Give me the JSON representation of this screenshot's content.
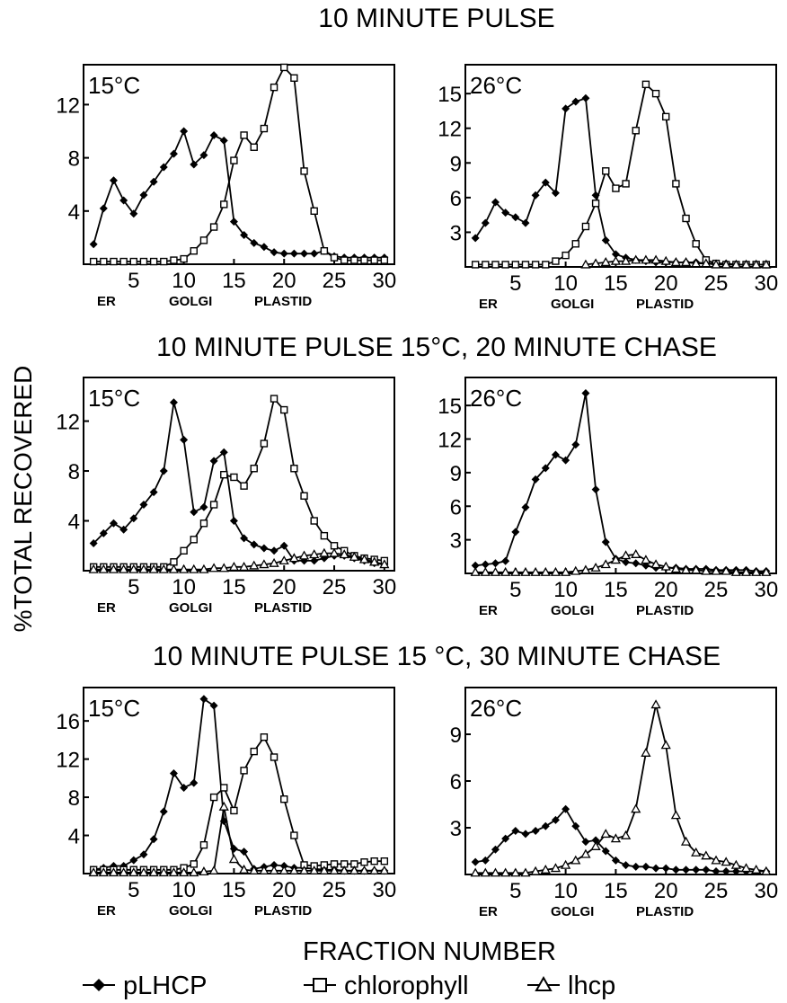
{
  "figure": {
    "ylabel": "%TOTAL RECOVERED",
    "xlabel": "FRACTION NUMBER",
    "region_labels": [
      "ER",
      "GOLGI",
      "PLASTID"
    ],
    "sections": [
      "10 MINUTE PULSE",
      "10 MINUTE PULSE 15°C, 20 MINUTE CHASE",
      "10 MINUTE PULSE 15 °C, 30 MINUTE CHASE"
    ],
    "legend": [
      {
        "name": "pLHCP",
        "marker": "filled-diamond"
      },
      {
        "name": "chlorophyll",
        "marker": "open-square"
      },
      {
        "name": "lhcp",
        "marker": "open-triangle"
      }
    ]
  },
  "chart_data": [
    {
      "type": "line",
      "title": "10 MINUTE PULSE",
      "panel_label": "15°C",
      "xticks": [
        5,
        10,
        15,
        20,
        25,
        30
      ],
      "yticks": [
        4,
        8,
        12
      ],
      "xlim": [
        0,
        31
      ],
      "ylim": [
        0,
        15
      ],
      "series": [
        {
          "name": "pLHCP",
          "x": [
            1,
            2,
            3,
            4,
            5,
            6,
            7,
            8,
            9,
            10,
            11,
            12,
            13,
            14,
            15,
            16,
            17,
            18,
            19,
            20,
            21,
            22,
            23,
            24,
            25,
            26,
            27,
            28,
            29,
            30
          ],
          "values": [
            1.5,
            4.2,
            6.3,
            4.8,
            3.8,
            5.2,
            6.2,
            7.3,
            8.3,
            10.0,
            7.5,
            8.2,
            9.7,
            9.3,
            3.2,
            2.2,
            1.6,
            1.3,
            0.9,
            0.8,
            0.8,
            0.8,
            0.8,
            1.0,
            0.6,
            0.5,
            0.5,
            0.5,
            0.5,
            0.5
          ]
        },
        {
          "name": "chlorophyll",
          "x": [
            1,
            2,
            3,
            4,
            5,
            6,
            7,
            8,
            9,
            10,
            11,
            12,
            13,
            14,
            15,
            16,
            17,
            18,
            19,
            20,
            21,
            22,
            23,
            24,
            25,
            26,
            27,
            28,
            29,
            30
          ],
          "values": [
            0.2,
            0.2,
            0.2,
            0.2,
            0.2,
            0.2,
            0.2,
            0.2,
            0.3,
            0.4,
            1.0,
            1.8,
            2.8,
            4.5,
            7.8,
            9.7,
            8.8,
            10.2,
            13.3,
            14.8,
            14.0,
            7.0,
            4.0,
            1.0,
            0.5,
            0.3,
            0.3,
            0.3,
            0.3,
            0.3
          ]
        }
      ]
    },
    {
      "type": "line",
      "title": "10 MINUTE PULSE",
      "panel_label": "26°C",
      "xticks": [
        5,
        10,
        15,
        20,
        25,
        30
      ],
      "yticks": [
        3,
        6,
        9,
        12,
        15
      ],
      "xlim": [
        0,
        31
      ],
      "ylim": [
        0,
        17.5
      ],
      "series": [
        {
          "name": "pLHCP",
          "x": [
            1,
            2,
            3,
            4,
            5,
            6,
            7,
            8,
            9,
            10,
            11,
            12,
            13,
            14,
            15,
            16,
            17,
            18,
            19,
            20,
            21,
            22,
            23,
            24,
            25,
            26,
            27,
            28,
            29,
            30
          ],
          "values": [
            2.5,
            3.8,
            5.6,
            4.7,
            4.3,
            3.8,
            6.2,
            7.3,
            6.4,
            13.7,
            14.3,
            14.6,
            6.2,
            2.3,
            1.1,
            0.8,
            0.6,
            0.5,
            0.4,
            0.4,
            0.4,
            0.4,
            0.4,
            0.3,
            0.3,
            0.3,
            0.2,
            0.2,
            0.2,
            0.2
          ]
        },
        {
          "name": "chlorophyll",
          "x": [
            1,
            2,
            3,
            4,
            5,
            6,
            7,
            8,
            9,
            10,
            11,
            12,
            13,
            14,
            15,
            16,
            17,
            18,
            19,
            20,
            21,
            22,
            23,
            24,
            25,
            26,
            27,
            28,
            29,
            30
          ],
          "values": [
            0.2,
            0.2,
            0.2,
            0.2,
            0.2,
            0.2,
            0.2,
            0.2,
            0.5,
            1.0,
            2.0,
            3.5,
            5.5,
            8.3,
            6.8,
            7.2,
            11.8,
            15.8,
            15.0,
            13.0,
            7.2,
            4.2,
            2.0,
            0.6,
            0.3,
            0.2,
            0.2,
            0.2,
            0.2,
            0.2
          ]
        },
        {
          "name": "lhcp",
          "x": [
            12,
            13,
            14,
            15,
            16,
            17,
            18,
            19,
            20,
            21,
            22,
            23,
            24,
            25,
            26,
            27,
            28,
            29,
            30
          ],
          "values": [
            0.2,
            0.3,
            0.4,
            0.5,
            0.5,
            0.6,
            0.6,
            0.6,
            0.5,
            0.4,
            0.4,
            0.3,
            0.3,
            0.2,
            0.2,
            0.2,
            0.2,
            0.2,
            0.2
          ]
        }
      ]
    },
    {
      "type": "line",
      "title": "10 MINUTE PULSE 15°C, 20 MINUTE CHASE",
      "panel_label": "15°C",
      "xticks": [
        5,
        10,
        15,
        20,
        25,
        30
      ],
      "yticks": [
        4,
        8,
        12
      ],
      "xlim": [
        0,
        31
      ],
      "ylim": [
        0,
        15.5
      ],
      "series": [
        {
          "name": "pLHCP",
          "x": [
            1,
            2,
            3,
            4,
            5,
            6,
            7,
            8,
            9,
            10,
            11,
            12,
            13,
            14,
            15,
            16,
            17,
            18,
            19,
            20,
            21,
            22,
            23,
            24,
            25,
            26,
            27,
            28,
            29,
            30
          ],
          "values": [
            2.2,
            3.0,
            3.8,
            3.3,
            4.2,
            5.3,
            6.3,
            8.0,
            13.5,
            10.5,
            4.7,
            5.1,
            8.8,
            9.5,
            4.0,
            2.6,
            2.1,
            1.8,
            1.6,
            2.0,
            0.8,
            0.8,
            0.8,
            1.0,
            1.2,
            1.2,
            1.0,
            0.8,
            0.6,
            0.5
          ]
        },
        {
          "name": "chlorophyll",
          "x": [
            1,
            2,
            3,
            4,
            5,
            6,
            7,
            8,
            9,
            10,
            11,
            12,
            13,
            14,
            15,
            16,
            17,
            18,
            19,
            20,
            21,
            22,
            23,
            24,
            25,
            26,
            27,
            28,
            29,
            30
          ],
          "values": [
            0.3,
            0.3,
            0.3,
            0.3,
            0.3,
            0.3,
            0.3,
            0.3,
            0.7,
            1.6,
            2.5,
            3.8,
            5.3,
            7.7,
            7.5,
            6.8,
            8.2,
            10.2,
            13.8,
            12.9,
            8.2,
            6.0,
            4.0,
            2.8,
            2.0,
            1.6,
            1.2,
            1.0,
            0.9,
            0.8
          ]
        },
        {
          "name": "lhcp",
          "x": [
            1,
            2,
            3,
            4,
            5,
            6,
            7,
            8,
            9,
            10,
            11,
            12,
            13,
            14,
            15,
            16,
            17,
            18,
            19,
            20,
            21,
            22,
            23,
            24,
            25,
            26,
            27,
            28,
            29,
            30
          ],
          "values": [
            0.1,
            0.1,
            0.1,
            0.1,
            0.1,
            0.1,
            0.1,
            0.1,
            0.1,
            0.1,
            0.1,
            0.1,
            0.2,
            0.2,
            0.3,
            0.3,
            0.4,
            0.5,
            0.6,
            0.8,
            1.0,
            1.2,
            1.3,
            1.4,
            1.4,
            1.3,
            1.1,
            0.9,
            0.7,
            0.5
          ]
        }
      ]
    },
    {
      "type": "line",
      "title": "10 MINUTE PULSE 15°C, 20 MINUTE CHASE",
      "panel_label": "26°C",
      "xticks": [
        5,
        10,
        15,
        20,
        25,
        30
      ],
      "yticks": [
        3,
        6,
        9,
        12,
        15
      ],
      "xlim": [
        0,
        31
      ],
      "ylim": [
        0,
        17.5
      ],
      "series": [
        {
          "name": "pLHCP",
          "x": [
            1,
            2,
            3,
            4,
            5,
            6,
            7,
            8,
            9,
            10,
            11,
            12,
            13,
            14,
            15,
            16,
            17,
            18,
            19,
            20,
            21,
            22,
            23,
            24,
            25,
            26,
            27,
            28,
            29,
            30
          ],
          "values": [
            0.7,
            0.8,
            0.9,
            1.1,
            3.7,
            5.9,
            8.4,
            9.4,
            10.6,
            10.1,
            11.5,
            16.1,
            7.5,
            2.8,
            1.3,
            1.0,
            0.9,
            0.7,
            0.5,
            0.5,
            0.5,
            0.4,
            0.4,
            0.4,
            0.3,
            0.3,
            0.3,
            0.3,
            0.2,
            0.2
          ]
        },
        {
          "name": "lhcp",
          "x": [
            1,
            2,
            3,
            4,
            5,
            6,
            7,
            8,
            9,
            10,
            11,
            12,
            13,
            14,
            15,
            16,
            17,
            18,
            19,
            20,
            21,
            22,
            23,
            24,
            25,
            26,
            27,
            28,
            29,
            30
          ],
          "values": [
            0.1,
            0.1,
            0.1,
            0.1,
            0.1,
            0.1,
            0.1,
            0.1,
            0.1,
            0.1,
            0.2,
            0.3,
            0.5,
            0.8,
            1.2,
            1.6,
            1.7,
            1.2,
            0.8,
            0.6,
            0.4,
            0.3,
            0.3,
            0.2,
            0.2,
            0.2,
            0.1,
            0.1,
            0.1,
            0.1
          ]
        }
      ]
    },
    {
      "type": "line",
      "title": "10 MINUTE PULSE 15 °C, 30 MINUTE CHASE",
      "panel_label": "15°C",
      "xticks": [
        5,
        10,
        15,
        20,
        25,
        30
      ],
      "yticks": [
        4,
        8,
        12,
        16
      ],
      "xlim": [
        0,
        31
      ],
      "ylim": [
        0,
        19.5
      ],
      "series": [
        {
          "name": "pLHCP",
          "x": [
            1,
            2,
            3,
            4,
            5,
            6,
            7,
            8,
            9,
            10,
            11,
            12,
            13,
            14,
            15,
            16,
            17,
            18,
            19,
            20,
            21,
            22,
            23,
            24,
            25,
            26,
            27,
            28,
            29,
            30
          ],
          "values": [
            0.4,
            0.6,
            0.8,
            0.8,
            1.4,
            2.0,
            3.6,
            6.5,
            10.5,
            9.0,
            9.5,
            18.3,
            17.6,
            5.5,
            2.6,
            2.3,
            0.5,
            0.7,
            0.9,
            0.8,
            0.6,
            0.6,
            0.5,
            0.4,
            0.4,
            0.3,
            0.3,
            0.3,
            0.3,
            0.3
          ]
        },
        {
          "name": "chlorophyll",
          "x": [
            1,
            2,
            3,
            4,
            5,
            6,
            7,
            8,
            9,
            10,
            11,
            12,
            13,
            14,
            15,
            16,
            17,
            18,
            19,
            20,
            21,
            22,
            23,
            24,
            25,
            26,
            27,
            28,
            29,
            30
          ],
          "values": [
            0.4,
            0.4,
            0.4,
            0.4,
            0.4,
            0.4,
            0.4,
            0.4,
            0.4,
            0.6,
            1.0,
            3.0,
            8.0,
            9.0,
            6.6,
            10.8,
            12.8,
            14.3,
            12.2,
            7.8,
            4.0,
            0.9,
            0.8,
            0.9,
            1.0,
            1.0,
            1.0,
            1.2,
            1.3,
            1.3
          ]
        },
        {
          "name": "lhcp",
          "x": [
            1,
            2,
            3,
            4,
            5,
            6,
            7,
            8,
            9,
            10,
            11,
            12,
            13,
            14,
            15,
            16,
            17,
            18,
            19,
            20,
            21,
            22,
            23,
            24,
            25,
            26,
            27,
            28,
            29,
            30
          ],
          "values": [
            0.1,
            0.1,
            0.1,
            0.1,
            0.1,
            0.1,
            0.1,
            0.1,
            0.1,
            0.1,
            0.1,
            0.2,
            0.3,
            7.0,
            1.5,
            0.4,
            0.3,
            0.3,
            0.3,
            0.3,
            0.3,
            0.3,
            0.3,
            0.3,
            0.3,
            0.3,
            0.3,
            0.3,
            0.3,
            0.3
          ]
        }
      ]
    },
    {
      "type": "line",
      "title": "10 MINUTE PULSE 15 °C, 30 MINUTE CHASE",
      "panel_label": "26°C",
      "xticks": [
        5,
        10,
        15,
        20,
        25,
        30
      ],
      "yticks": [
        3,
        6,
        9
      ],
      "xlim": [
        0,
        31
      ],
      "ylim": [
        0,
        12
      ],
      "series": [
        {
          "name": "pLHCP",
          "x": [
            1,
            2,
            3,
            4,
            5,
            6,
            7,
            8,
            9,
            10,
            11,
            12,
            13,
            14,
            15,
            16,
            17,
            18,
            19,
            20,
            21,
            22,
            23,
            24,
            25,
            26,
            27,
            28,
            29,
            30
          ],
          "values": [
            0.8,
            0.9,
            1.6,
            2.3,
            2.8,
            2.6,
            2.8,
            3.1,
            3.5,
            4.2,
            3.1,
            2.1,
            2.2,
            1.5,
            0.9,
            0.6,
            0.5,
            0.5,
            0.4,
            0.4,
            0.3,
            0.3,
            0.3,
            0.3,
            0.2,
            0.2,
            0.2,
            0.2,
            0.2,
            0.2
          ]
        },
        {
          "name": "lhcp",
          "x": [
            1,
            2,
            3,
            4,
            5,
            6,
            7,
            8,
            9,
            10,
            11,
            12,
            13,
            14,
            15,
            16,
            17,
            18,
            19,
            20,
            21,
            22,
            23,
            24,
            25,
            26,
            27,
            28,
            29,
            30
          ],
          "values": [
            0.1,
            0.1,
            0.1,
            0.1,
            0.1,
            0.1,
            0.2,
            0.3,
            0.4,
            0.6,
            0.9,
            1.3,
            1.8,
            2.6,
            2.3,
            2.5,
            4.2,
            7.8,
            10.9,
            8.3,
            3.8,
            2.1,
            1.4,
            1.2,
            0.9,
            0.8,
            0.6,
            0.4,
            0.3,
            0.2
          ]
        }
      ]
    }
  ]
}
